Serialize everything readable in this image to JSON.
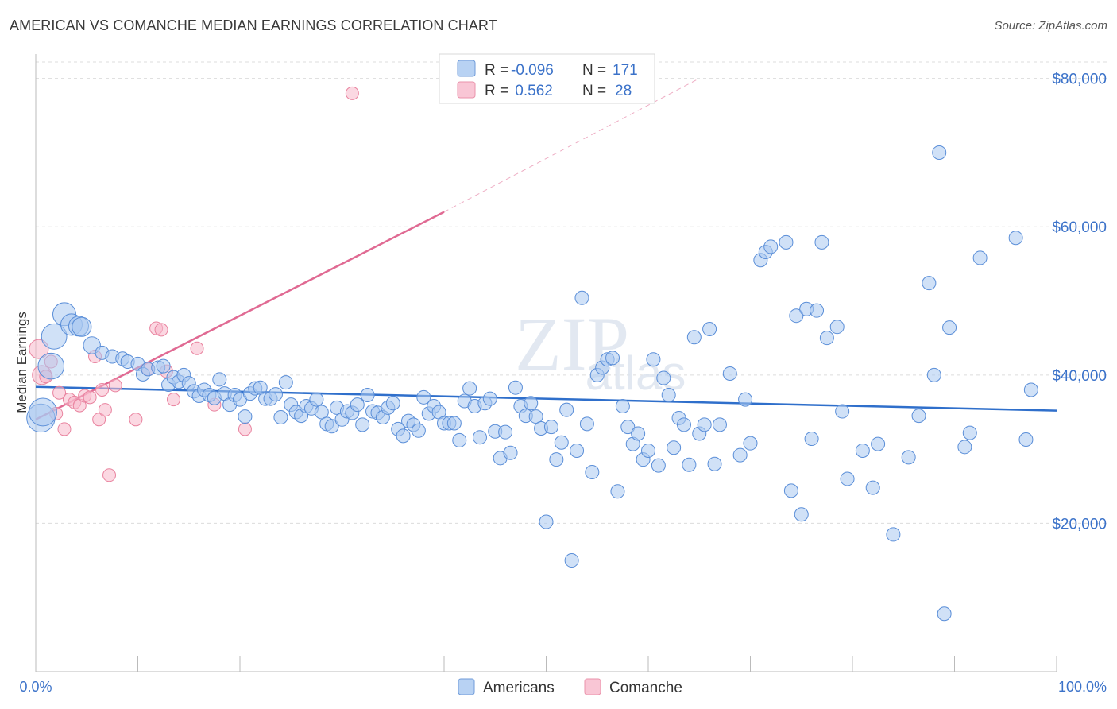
{
  "title": "AMERICAN VS COMANCHE MEDIAN EARNINGS CORRELATION CHART",
  "source": "Source: ZipAtlas.com",
  "watermark": "ZIPatlas",
  "legend": {
    "rows": [
      {
        "r_label": "R =",
        "r_value": "-0.096",
        "n_label": "N =",
        "n_value": "171"
      },
      {
        "r_label": "R =",
        "r_value": " 0.562",
        "n_label": "N =",
        "n_value": "28"
      }
    ]
  },
  "bottom_legend": [
    "Americans",
    "Comanche"
  ],
  "colors": {
    "americans_fill": "#a9c8f0",
    "americans_stroke": "#5a8ed8",
    "americans_line": "#2f6fcb",
    "comanche_fill": "#f7b8cb",
    "comanche_stroke": "#e9839f",
    "comanche_line": "#e06a93",
    "axis_text": "#3b72c9"
  },
  "chart_data": {
    "type": "scatter",
    "xlabel": "",
    "ylabel": "Median Earnings",
    "x_tick_labels": [
      "0.0%",
      "100.0%"
    ],
    "y_tick_labels": [
      "$20,000",
      "$40,000",
      "$60,000",
      "$80,000"
    ],
    "xlim": [
      0,
      100
    ],
    "ylim": [
      0,
      82000
    ],
    "y_ticks": [
      20000,
      40000,
      60000,
      80000
    ],
    "series": [
      {
        "name": "Americans",
        "trend": {
          "x0": 0,
          "y0": 38400,
          "x1": 100,
          "y1": 35200
        },
        "points": [
          [
            0.5,
            34200
          ],
          [
            0.7,
            35000
          ],
          [
            1.5,
            41200
          ],
          [
            1.8,
            45200
          ],
          [
            2.8,
            48200
          ],
          [
            3.5,
            46800
          ],
          [
            4.2,
            46600
          ],
          [
            4.5,
            46500
          ],
          [
            5.5,
            44000
          ],
          [
            6.5,
            43000
          ],
          [
            7.5,
            42500
          ],
          [
            8.5,
            42200
          ],
          [
            9.0,
            41800
          ],
          [
            10.0,
            41500
          ],
          [
            10.5,
            40100
          ],
          [
            11.0,
            40800
          ],
          [
            12.0,
            41000
          ],
          [
            12.5,
            41200
          ],
          [
            13.0,
            38700
          ],
          [
            13.5,
            39700
          ],
          [
            14.0,
            39100
          ],
          [
            14.5,
            40000
          ],
          [
            15.0,
            38900
          ],
          [
            15.5,
            37800
          ],
          [
            16.0,
            37200
          ],
          [
            16.5,
            38000
          ],
          [
            17.0,
            37300
          ],
          [
            17.5,
            36900
          ],
          [
            18.0,
            39400
          ],
          [
            18.5,
            37500
          ],
          [
            19.0,
            36000
          ],
          [
            19.5,
            37300
          ],
          [
            20.0,
            36700
          ],
          [
            20.5,
            34400
          ],
          [
            21.0,
            37500
          ],
          [
            21.5,
            38200
          ],
          [
            22.0,
            38300
          ],
          [
            22.5,
            36800
          ],
          [
            23.0,
            36800
          ],
          [
            23.5,
            37400
          ],
          [
            24.0,
            34300
          ],
          [
            24.5,
            39000
          ],
          [
            25.0,
            36000
          ],
          [
            25.5,
            35000
          ],
          [
            26.0,
            34500
          ],
          [
            26.5,
            35800
          ],
          [
            27.0,
            35500
          ],
          [
            27.5,
            36700
          ],
          [
            28.0,
            35000
          ],
          [
            28.5,
            33400
          ],
          [
            29.0,
            33100
          ],
          [
            29.5,
            35600
          ],
          [
            30.0,
            34000
          ],
          [
            30.5,
            35100
          ],
          [
            31.0,
            34900
          ],
          [
            31.5,
            36000
          ],
          [
            32.0,
            33300
          ],
          [
            32.5,
            37300
          ],
          [
            33.0,
            35100
          ],
          [
            33.5,
            34900
          ],
          [
            34.0,
            34300
          ],
          [
            34.5,
            35600
          ],
          [
            35.0,
            36200
          ],
          [
            35.5,
            32700
          ],
          [
            36.0,
            31800
          ],
          [
            36.5,
            33800
          ],
          [
            37.0,
            33300
          ],
          [
            37.5,
            32500
          ],
          [
            38.0,
            37000
          ],
          [
            38.5,
            34800
          ],
          [
            39.0,
            35800
          ],
          [
            39.5,
            35000
          ],
          [
            40.0,
            33500
          ],
          [
            40.5,
            33500
          ],
          [
            41.0,
            33500
          ],
          [
            41.5,
            31200
          ],
          [
            42.0,
            36500
          ],
          [
            42.5,
            38200
          ],
          [
            43.0,
            35800
          ],
          [
            43.5,
            31600
          ],
          [
            44.0,
            36200
          ],
          [
            44.5,
            36800
          ],
          [
            45.0,
            32400
          ],
          [
            45.5,
            28800
          ],
          [
            46.0,
            32300
          ],
          [
            46.5,
            29500
          ],
          [
            47.0,
            38300
          ],
          [
            47.5,
            35800
          ],
          [
            48.0,
            34500
          ],
          [
            48.5,
            36200
          ],
          [
            49.0,
            34400
          ],
          [
            49.5,
            32800
          ],
          [
            50.0,
            20200
          ],
          [
            50.5,
            33000
          ],
          [
            51.0,
            28600
          ],
          [
            51.5,
            30900
          ],
          [
            52.0,
            35300
          ],
          [
            52.5,
            15000
          ],
          [
            53.0,
            29800
          ],
          [
            53.5,
            50400
          ],
          [
            54.0,
            33400
          ],
          [
            54.5,
            26900
          ],
          [
            55.0,
            40000
          ],
          [
            55.5,
            41000
          ],
          [
            56.0,
            42100
          ],
          [
            56.5,
            42300
          ],
          [
            57.0,
            24300
          ],
          [
            57.5,
            35800
          ],
          [
            58.0,
            33000
          ],
          [
            58.5,
            30700
          ],
          [
            59.0,
            32100
          ],
          [
            59.5,
            28600
          ],
          [
            60.0,
            29800
          ],
          [
            60.5,
            42100
          ],
          [
            61.0,
            27800
          ],
          [
            61.5,
            39600
          ],
          [
            62.0,
            37300
          ],
          [
            62.5,
            30200
          ],
          [
            63.0,
            34200
          ],
          [
            63.5,
            33300
          ],
          [
            64.0,
            27900
          ],
          [
            64.5,
            45100
          ],
          [
            65.0,
            32100
          ],
          [
            65.5,
            33300
          ],
          [
            66.0,
            46200
          ],
          [
            66.5,
            28000
          ],
          [
            67.0,
            33300
          ],
          [
            68.0,
            40200
          ],
          [
            69.0,
            29200
          ],
          [
            69.5,
            36700
          ],
          [
            70.0,
            30800
          ],
          [
            71.0,
            55500
          ],
          [
            71.5,
            56600
          ],
          [
            72.0,
            57300
          ],
          [
            73.5,
            57900
          ],
          [
            74.0,
            24400
          ],
          [
            74.5,
            48000
          ],
          [
            75.0,
            21200
          ],
          [
            75.5,
            48900
          ],
          [
            76.0,
            31400
          ],
          [
            76.5,
            48700
          ],
          [
            77.0,
            57900
          ],
          [
            77.5,
            45000
          ],
          [
            78.5,
            46500
          ],
          [
            79.0,
            35100
          ],
          [
            79.5,
            26000
          ],
          [
            81.0,
            29800
          ],
          [
            82.0,
            24800
          ],
          [
            82.5,
            30700
          ],
          [
            84.0,
            18500
          ],
          [
            85.5,
            28900
          ],
          [
            86.5,
            34500
          ],
          [
            87.5,
            52400
          ],
          [
            88.0,
            40000
          ],
          [
            88.5,
            70000
          ],
          [
            89.0,
            7800
          ],
          [
            89.5,
            46400
          ],
          [
            91.0,
            30300
          ],
          [
            91.5,
            32200
          ],
          [
            92.5,
            55800
          ],
          [
            96.0,
            58500
          ],
          [
            97.0,
            31300
          ],
          [
            97.5,
            38000
          ]
        ]
      },
      {
        "name": "Comanche",
        "trend": {
          "x0": 0,
          "y0": 34000,
          "x1": 40,
          "y1": 62000
        },
        "trend_dashed": {
          "x0": 40,
          "y0": 62000,
          "x1": 65,
          "y1": 80000
        },
        "points": [
          [
            0.3,
            43500
          ],
          [
            0.6,
            40000
          ],
          [
            1.0,
            39800
          ],
          [
            1.5,
            41800
          ],
          [
            2.0,
            34800
          ],
          [
            2.3,
            37600
          ],
          [
            2.8,
            32700
          ],
          [
            3.3,
            36700
          ],
          [
            3.8,
            36300
          ],
          [
            4.3,
            35900
          ],
          [
            4.8,
            37200
          ],
          [
            5.3,
            37000
          ],
          [
            5.8,
            42500
          ],
          [
            6.2,
            34000
          ],
          [
            6.5,
            38000
          ],
          [
            6.8,
            35300
          ],
          [
            7.2,
            26500
          ],
          [
            7.8,
            38600
          ],
          [
            9.8,
            34000
          ],
          [
            11.0,
            40800
          ],
          [
            11.8,
            46300
          ],
          [
            12.3,
            46100
          ],
          [
            12.8,
            40500
          ],
          [
            13.5,
            36700
          ],
          [
            15.8,
            43600
          ],
          [
            17.5,
            36000
          ],
          [
            20.5,
            32700
          ],
          [
            31.0,
            78000
          ]
        ]
      }
    ]
  }
}
